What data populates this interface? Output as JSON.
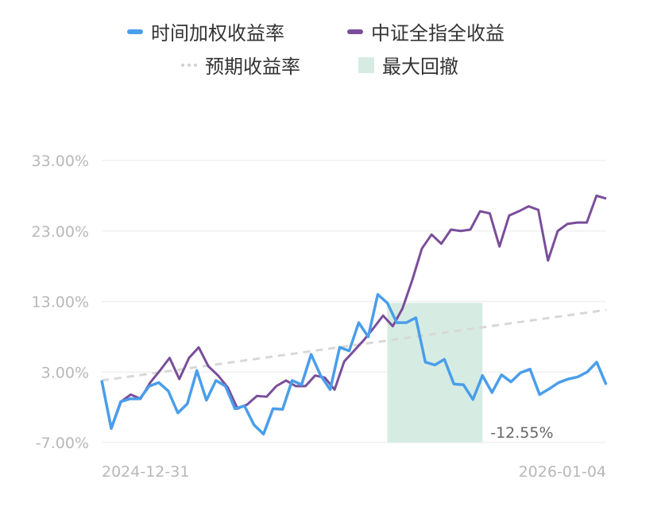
{
  "legend": {
    "items": [
      {
        "label": "时间加权收益率",
        "color": "#4a9eea",
        "kind": "line"
      },
      {
        "label": "中证全指全收益",
        "color": "#7a4e9a",
        "kind": "line"
      },
      {
        "label": "预期收益率",
        "color": "#d0d0d0",
        "kind": "dash"
      },
      {
        "label": "最大回撤",
        "color": "#d6ece3",
        "kind": "area"
      }
    ]
  },
  "chart_data": {
    "type": "line",
    "y_ticks": [
      "33.00%",
      "23.00%",
      "13.00%",
      "3.00%",
      "-7.00%"
    ],
    "ylim": [
      -7,
      33
    ],
    "x_start_label": "2024-12-31",
    "x_end_label": "2026-01-04",
    "drawdown_label": "-12.55%",
    "drawdown_range": [
      30,
      40
    ],
    "series": [
      {
        "name": "时间加权收益率",
        "color": "#4a9eea",
        "values": [
          1.8,
          -5.0,
          -1.2,
          -0.8,
          -0.8,
          1.0,
          1.5,
          0.3,
          -2.8,
          -1.5,
          3.2,
          -1.0,
          1.8,
          1.0,
          -2.2,
          -1.8,
          -4.5,
          -5.8,
          -2.2,
          -2.3,
          1.8,
          1.2,
          5.5,
          2.5,
          0.5,
          6.5,
          6.0,
          10.0,
          8.0,
          14.0,
          12.8,
          10.0,
          10.0,
          10.7,
          4.4,
          4.0,
          4.8,
          1.3,
          1.2,
          -0.9,
          2.5,
          0.1,
          2.6,
          1.6,
          2.9,
          3.4,
          -0.2,
          0.6,
          1.5,
          2.0,
          2.3,
          3.0,
          4.4,
          1.2
        ]
      },
      {
        "name": "中证全指全收益",
        "color": "#7a4e9a",
        "values": [
          1.8,
          -5.0,
          -1.2,
          -0.2,
          -0.8,
          1.5,
          3.2,
          5.0,
          2.0,
          5.0,
          6.5,
          3.8,
          2.5,
          0.8,
          -2.2,
          -1.6,
          -0.4,
          -0.5,
          1.0,
          1.8,
          1.0,
          1.0,
          2.5,
          2.2,
          0.5,
          4.5,
          6.0,
          7.5,
          9.2,
          11.0,
          9.5,
          12.0,
          16.0,
          20.5,
          22.5,
          21.2,
          23.2,
          23.0,
          23.2,
          25.8,
          25.5,
          20.8,
          25.2,
          25.8,
          26.5,
          26.0,
          18.8,
          23.0,
          24.0,
          24.2,
          24.2,
          28.0,
          27.6
        ]
      },
      {
        "name": "预期收益率",
        "color": "#d8d8d8",
        "values": [
          1.8,
          11.8
        ]
      }
    ]
  }
}
